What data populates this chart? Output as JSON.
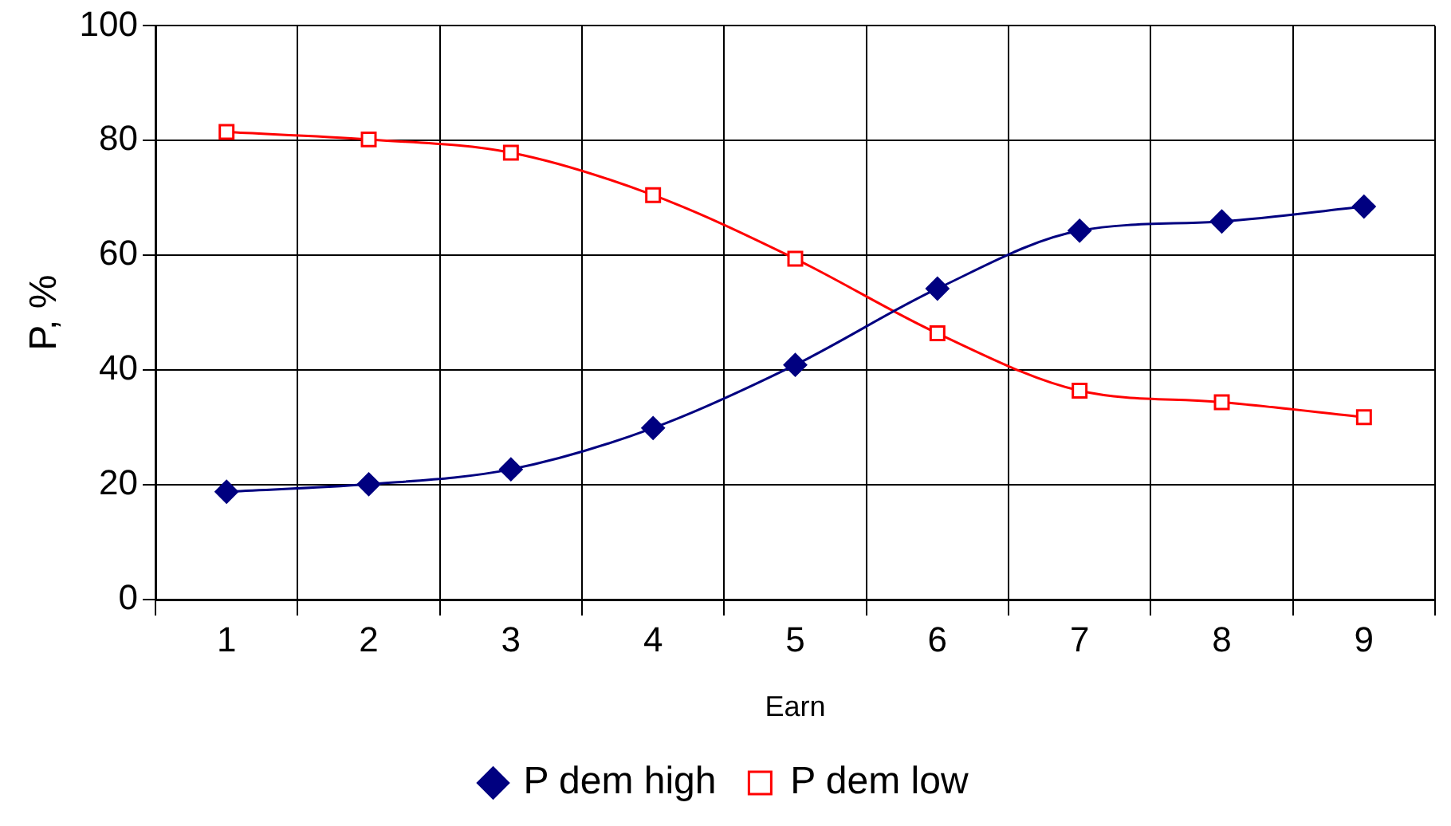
{
  "chart_data": {
    "type": "line",
    "xlabel": "Earn",
    "ylabel": "P, %",
    "categories": [
      "1",
      "2",
      "3",
      "4",
      "5",
      "6",
      "7",
      "8",
      "9"
    ],
    "series": [
      {
        "name": "P dem high",
        "color": "#000080",
        "marker": "diamond",
        "values": [
          18.8,
          20.1,
          22.7,
          29.9,
          40.9,
          54.2,
          64.3,
          65.9,
          68.5
        ]
      },
      {
        "name": "P dem low",
        "color": "#ff0000",
        "marker": "square",
        "values": [
          81.5,
          80.2,
          77.9,
          70.5,
          59.4,
          46.4,
          36.4,
          34.4,
          31.8
        ]
      }
    ],
    "ylim": [
      0,
      100
    ],
    "yticks": [
      0,
      20,
      40,
      60,
      80,
      100
    ],
    "grid": true,
    "legend": "bottom",
    "line_style": "solid"
  }
}
